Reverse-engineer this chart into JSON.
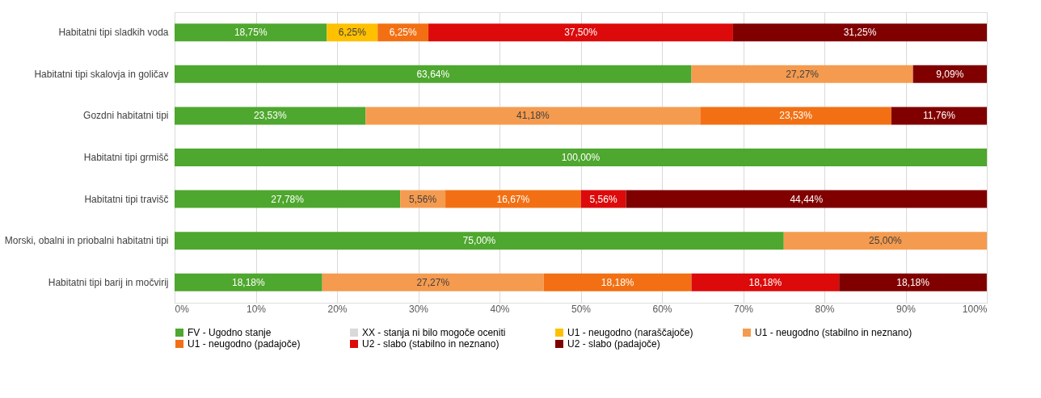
{
  "chart_data": {
    "type": "bar",
    "orientation": "horizontal",
    "stacked": true,
    "categories": [
      "Habitatni tipi sladkih voda",
      "Habitatni tipi skalovja in goličav",
      "Gozdni habitatni tipi",
      "Habitatni tipi grmišč",
      "Habitatni tipi travišč",
      "Morski, obalni in priobalni habitatni tipi",
      "Habitatni tipi barij in močvirij"
    ],
    "series": [
      {
        "name": "FV - Ugodno stanje",
        "color": "#4ea72e",
        "values": [
          18.75,
          63.64,
          23.53,
          100,
          27.78,
          75,
          18.18
        ],
        "value_labels": [
          "18,75%",
          "63,64%",
          "23,53%",
          "100,00%",
          "27,78%",
          "75,00%",
          "18,18%"
        ]
      },
      {
        "name": "XX - stanja ni bilo mogoče oceniti",
        "color": "#d9d9d9",
        "values": [
          null,
          null,
          null,
          null,
          null,
          null,
          null
        ]
      },
      {
        "name": "U1 - neugodno (naraščajoče)",
        "color": "#ffc000",
        "values": [
          6.25,
          null,
          null,
          null,
          null,
          null,
          null
        ],
        "value_labels": [
          "6,25%",
          null,
          null,
          null,
          null,
          null,
          null
        ]
      },
      {
        "name": "U1 - neugodno (stabilno in neznano)",
        "color": "#f59b4f",
        "values": [
          null,
          27.27,
          41.18,
          null,
          5.56,
          25,
          27.27
        ],
        "value_labels": [
          null,
          "27,27%",
          "41,18%",
          null,
          "5,56%",
          "25,00%",
          "27,27%"
        ]
      },
      {
        "name": "U1 - neugodno (padajoče)",
        "color": "#f27013",
        "values": [
          6.25,
          null,
          23.53,
          null,
          16.67,
          null,
          18.18
        ],
        "value_labels": [
          "6,25%",
          null,
          "23,53%",
          null,
          "16,67%",
          null,
          "18,18%"
        ]
      },
      {
        "name": "U2 - slabo (stabilno in neznano)",
        "color": "#dc0a0a",
        "values": [
          37.5,
          null,
          null,
          null,
          5.56,
          null,
          18.18
        ],
        "value_labels": [
          "37,50%",
          null,
          null,
          null,
          "5,56%",
          null,
          "18,18%"
        ]
      },
      {
        "name": "U2 - slabo (padajoče)",
        "color": "#800000",
        "values": [
          31.25,
          9.09,
          11.76,
          null,
          44.44,
          null,
          18.18
        ],
        "value_labels": [
          "31,25%",
          "9,09%",
          "11,76%",
          null,
          "44,44%",
          null,
          "18,18%"
        ]
      }
    ],
    "xlim": [
      0,
      100
    ],
    "xticks": [
      {
        "value": 0,
        "label": "0%"
      },
      {
        "value": 10,
        "label": "10%"
      },
      {
        "value": 20,
        "label": "20%"
      },
      {
        "value": 30,
        "label": "30%"
      },
      {
        "value": 40,
        "label": "40%"
      },
      {
        "value": 50,
        "label": "50%"
      },
      {
        "value": 60,
        "label": "60%"
      },
      {
        "value": 70,
        "label": "70%"
      },
      {
        "value": 80,
        "label": "80%"
      },
      {
        "value": 90,
        "label": "90%"
      },
      {
        "value": 100,
        "label": "100%"
      }
    ],
    "grid": "x",
    "legend": "bottom"
  }
}
